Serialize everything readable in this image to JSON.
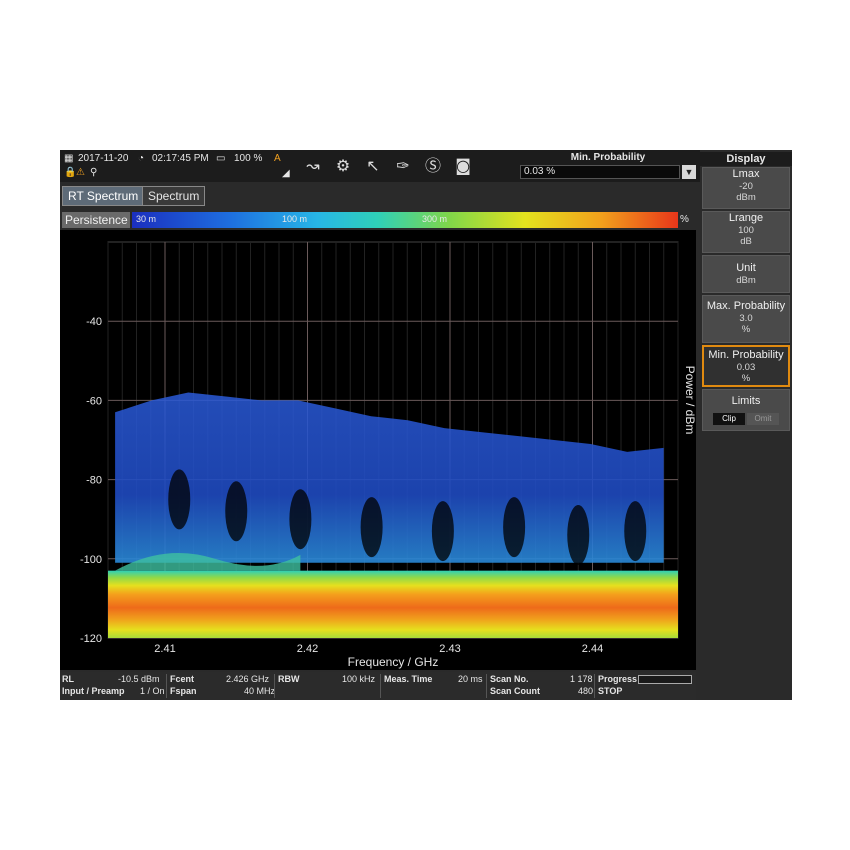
{
  "status": {
    "date": "2017-11-20",
    "time": "02:17:45 PM",
    "battery": "100 %",
    "mode_flag": "A"
  },
  "toolbar_icons": [
    "marker-icon",
    "settings-icon",
    "cursor-icon",
    "marker-peak-icon",
    "scan-icon",
    "camera-icon"
  ],
  "min_probability_header": {
    "title": "Min. Probability",
    "value": "0.03 %"
  },
  "tabs": [
    {
      "label": "RT Spectrum",
      "active": true
    },
    {
      "label": "Spectrum",
      "active": false
    }
  ],
  "persistence": {
    "label": "Persistence",
    "ticks": [
      "30 m",
      "100 m",
      "300 m"
    ],
    "unit": "%"
  },
  "chart_data": {
    "type": "heatmap",
    "xlabel": "Frequency / GHz",
    "ylabel": "Power / dBm",
    "x_ticks": [
      "2.41",
      "2.42",
      "2.43",
      "2.44"
    ],
    "y_ticks": [
      "-40",
      "-60",
      "-80",
      "-100",
      "-120"
    ],
    "xlim": [
      2.406,
      2.446
    ],
    "ylim": [
      -120,
      -20
    ],
    "noise_floor_band_dbm": [
      -120,
      -103
    ],
    "signal_envelope_top_dbm": [
      -63,
      -60,
      -58,
      -59,
      -60,
      -60,
      -62,
      -64,
      -65,
      -67,
      -68,
      -69,
      -70,
      -71,
      -73,
      -72
    ]
  },
  "infobar": {
    "rl_label": "RL",
    "rl_value": "-10.5 dBm",
    "input_label": "Input / Preamp",
    "input_value": "1 / On",
    "fcent_label": "Fcent",
    "fcent_value": "2.426 GHz",
    "fspan_label": "Fspan",
    "fspan_value": "40 MHz",
    "rbw_label": "RBW",
    "rbw_value": "100 kHz",
    "meas_label": "Meas. Time",
    "meas_value": "20 ms",
    "scanno_label": "Scan No.",
    "scanno_value": "1 178",
    "scancount_label": "Scan Count",
    "scancount_value": "480",
    "progress_label": "Progress",
    "stop_label": "STOP"
  },
  "right_panel": {
    "title": "Display",
    "lmax": {
      "name": "Lmax",
      "value": "-20",
      "unit": "dBm"
    },
    "lrange": {
      "name": "Lrange",
      "value": "100",
      "unit": "dB"
    },
    "unit": {
      "name": "Unit",
      "value": "dBm"
    },
    "max_prob": {
      "name": "Max. Probability",
      "value": "3.0",
      "unit": "%"
    },
    "min_prob": {
      "name": "Min. Probability",
      "value": "0.03",
      "unit": "%"
    },
    "limits": {
      "name": "Limits",
      "opt_clip": "Clip",
      "opt_omit": "Omit"
    }
  },
  "colors": {
    "accent": "#e08a10",
    "noise_floor": "#e8a020",
    "signal": "#2a5ad8"
  }
}
